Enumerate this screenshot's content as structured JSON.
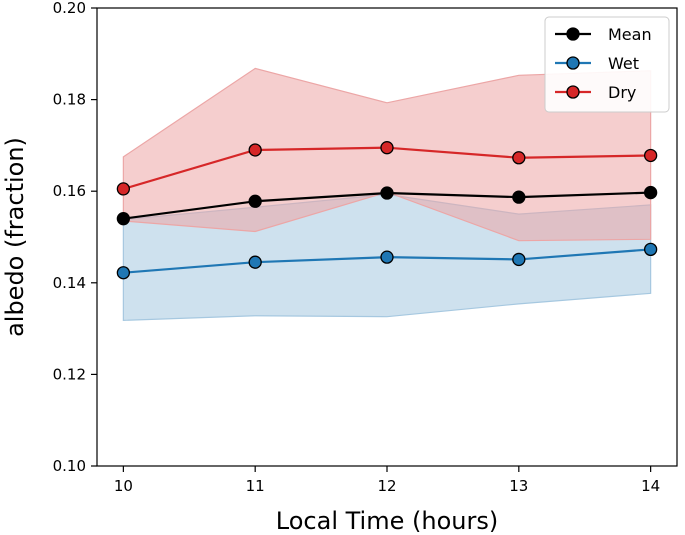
{
  "chart_data": {
    "type": "line",
    "xlabel": "Local Time (hours)",
    "ylabel": "albedo (fraction)",
    "x": [
      10,
      11,
      12,
      13,
      14
    ],
    "xlim": [
      9.8,
      14.2
    ],
    "ylim": [
      0.1,
      0.2
    ],
    "xticks": [
      "10",
      "11",
      "12",
      "13",
      "14"
    ],
    "yticks": [
      "0.10",
      "0.12",
      "0.14",
      "0.16",
      "0.18",
      "0.20"
    ],
    "grid": false,
    "legend_position": "top-right",
    "series": [
      {
        "name": "Mean",
        "color": "#000000",
        "values": [
          0.154,
          0.1578,
          0.1596,
          0.1587,
          0.1597
        ],
        "band": null
      },
      {
        "name": "Wet",
        "color": "#1f77b4",
        "band_color": "#a6c8e0",
        "values": [
          0.1422,
          0.1445,
          0.1456,
          0.1451,
          0.1473
        ],
        "band": {
          "lower": [
            0.1318,
            0.1328,
            0.1326,
            0.1354,
            0.1377
          ],
          "upper": [
            0.1538,
            0.1565,
            0.1593,
            0.155,
            0.157
          ]
        }
      },
      {
        "name": "Dry",
        "color": "#d62728",
        "band_color": "#eca6a6",
        "values": [
          0.1605,
          0.169,
          0.1695,
          0.1673,
          0.1678
        ],
        "band": {
          "lower": [
            0.1535,
            0.1512,
            0.1598,
            0.1492,
            0.1495
          ],
          "upper": [
            0.1675,
            0.1868,
            0.1793,
            0.1853,
            0.1863
          ]
        }
      }
    ]
  }
}
